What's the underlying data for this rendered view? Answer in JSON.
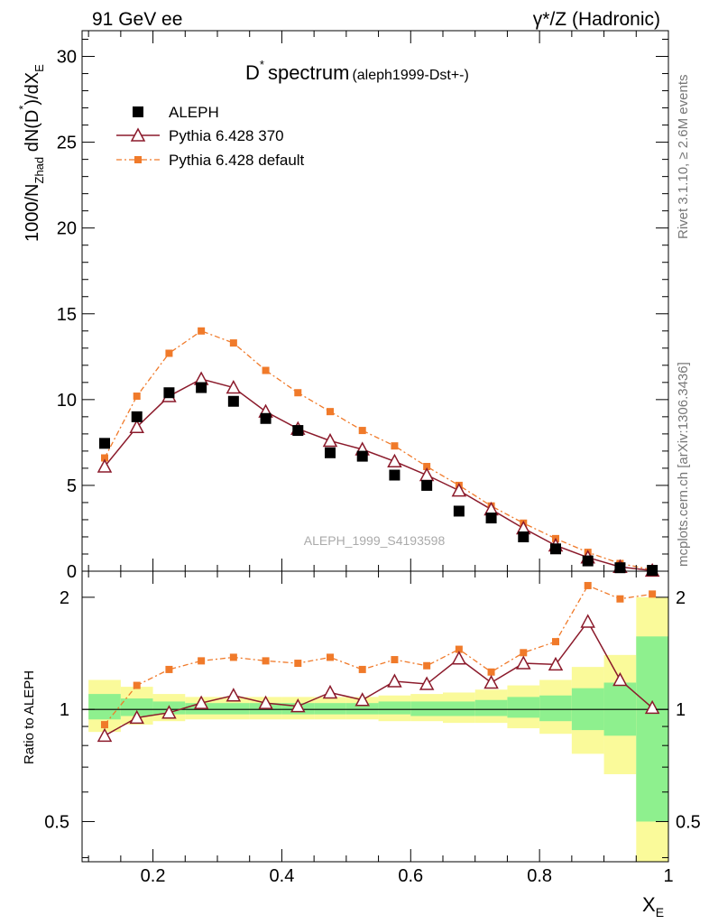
{
  "header": {
    "left": "91 GeV ee",
    "right": "γ*/Z (Hadronic)"
  },
  "side_labels": {
    "rivet": "Rivet 3.1.10, ≥ 2.6M events",
    "mcplots": "mcplots.cern.ch [arXiv:1306.3436]"
  },
  "watermark": "ALEPH_1999_S4193598",
  "chart_data": [
    {
      "type": "scatter",
      "panel": "main",
      "title": "D* spectrum (aleph1999-Dst+-)",
      "title_main": "D",
      "title_star": "*",
      "title_word": "spectrum",
      "title_tag": "(aleph1999-Dst+-)",
      "ylabel": "1000/N_Zhad dN(D*)/dX_E",
      "ylabel_parts": {
        "a": "1000/N",
        "b": "Zhad",
        "c": " dN(D",
        "d": "*",
        "e": ")/dX",
        "f": "E"
      },
      "xlim": [
        0.09,
        1.0
      ],
      "ylim": [
        0,
        31.5
      ],
      "yticks": [
        0,
        5,
        10,
        15,
        20,
        25,
        30
      ],
      "ytick_labels": [
        "0",
        "5",
        "10",
        "15",
        "20",
        "25",
        "30"
      ],
      "legend_position": "top-left",
      "x": [
        0.125,
        0.175,
        0.225,
        0.275,
        0.325,
        0.375,
        0.425,
        0.475,
        0.525,
        0.575,
        0.625,
        0.675,
        0.725,
        0.775,
        0.825,
        0.875,
        0.925,
        0.975
      ],
      "series": [
        {
          "name": "ALEPH",
          "color": "#000000",
          "marker": "square",
          "values": [
            7.45,
            9.0,
            10.4,
            10.7,
            9.9,
            8.9,
            8.2,
            6.9,
            6.7,
            5.6,
            5.0,
            3.5,
            3.1,
            2.0,
            1.3,
            0.6,
            0.2,
            0.05
          ]
        },
        {
          "name": "Pythia 6.428 370",
          "color": "#8b1a2b",
          "marker": "open-triangle",
          "values": [
            6.1,
            8.4,
            10.2,
            11.2,
            10.7,
            9.3,
            8.3,
            7.6,
            7.1,
            6.4,
            5.6,
            4.7,
            3.6,
            2.5,
            1.5,
            0.8,
            0.25,
            0.03
          ]
        },
        {
          "name": "Pythia 6.428 default",
          "color": "#f07a2a",
          "marker": "filled-square",
          "values": [
            6.6,
            10.2,
            12.7,
            14.0,
            13.3,
            11.7,
            10.4,
            9.3,
            8.2,
            7.3,
            6.1,
            5.0,
            3.8,
            2.8,
            1.9,
            1.1,
            0.45,
            0.08
          ]
        }
      ]
    },
    {
      "type": "line",
      "panel": "ratio",
      "ylabel": "Ratio to ALEPH",
      "xlabel": "X_E",
      "xlabel_parts": {
        "main": "X",
        "sub": "E"
      },
      "xlim": [
        0.09,
        1.0
      ],
      "ylim": [
        0.39,
        2.35
      ],
      "yticks": [
        0.5,
        1,
        2
      ],
      "ytick_labels": [
        "0.5",
        "1",
        "2"
      ],
      "xticks": [
        0.2,
        0.4,
        0.6,
        0.8,
        1.0
      ],
      "xtick_labels": [
        "0.2",
        "0.4",
        "0.6",
        "0.8",
        "1"
      ],
      "bin_edges": [
        0.1,
        0.15,
        0.2,
        0.25,
        0.3,
        0.35,
        0.4,
        0.45,
        0.5,
        0.55,
        0.6,
        0.65,
        0.7,
        0.75,
        0.8,
        0.85,
        0.9,
        0.95,
        1.0
      ],
      "band_1sigma_lo": [
        0.94,
        0.96,
        0.97,
        0.97,
        0.97,
        0.97,
        0.97,
        0.97,
        0.97,
        0.97,
        0.96,
        0.96,
        0.96,
        0.95,
        0.93,
        0.88,
        0.85,
        0.5
      ],
      "band_1sigma_hi": [
        1.1,
        1.07,
        1.05,
        1.04,
        1.04,
        1.04,
        1.04,
        1.04,
        1.04,
        1.05,
        1.05,
        1.05,
        1.06,
        1.08,
        1.09,
        1.14,
        1.18,
        1.57
      ],
      "band_2sigma_lo": [
        0.87,
        0.91,
        0.93,
        0.94,
        0.94,
        0.94,
        0.94,
        0.94,
        0.94,
        0.93,
        0.93,
        0.92,
        0.92,
        0.89,
        0.86,
        0.76,
        0.67,
        0.35
      ],
      "band_2sigma_hi": [
        1.2,
        1.15,
        1.1,
        1.08,
        1.08,
        1.08,
        1.08,
        1.08,
        1.08,
        1.09,
        1.1,
        1.11,
        1.13,
        1.16,
        1.2,
        1.3,
        1.4,
        2.0
      ],
      "band_colors": {
        "one_sigma": "#8ef08e",
        "two_sigma": "#fafa9a"
      },
      "x": [
        0.125,
        0.175,
        0.225,
        0.275,
        0.325,
        0.375,
        0.425,
        0.475,
        0.525,
        0.575,
        0.625,
        0.675,
        0.725,
        0.775,
        0.825,
        0.875,
        0.925,
        0.975
      ],
      "series": [
        {
          "name": "Pythia 6.428 370",
          "color": "#8b1a2b",
          "marker": "open-triangle",
          "values": [
            0.85,
            0.95,
            0.98,
            1.04,
            1.09,
            1.04,
            1.02,
            1.11,
            1.06,
            1.19,
            1.17,
            1.37,
            1.18,
            1.33,
            1.32,
            1.72,
            1.2,
            1.01
          ]
        },
        {
          "name": "Pythia 6.428 default",
          "color": "#f07a2a",
          "marker": "filled-square",
          "values": [
            0.91,
            1.16,
            1.28,
            1.35,
            1.38,
            1.35,
            1.33,
            1.38,
            1.28,
            1.36,
            1.31,
            1.45,
            1.26,
            1.42,
            1.52,
            2.15,
            1.98,
            2.04
          ]
        }
      ]
    }
  ]
}
